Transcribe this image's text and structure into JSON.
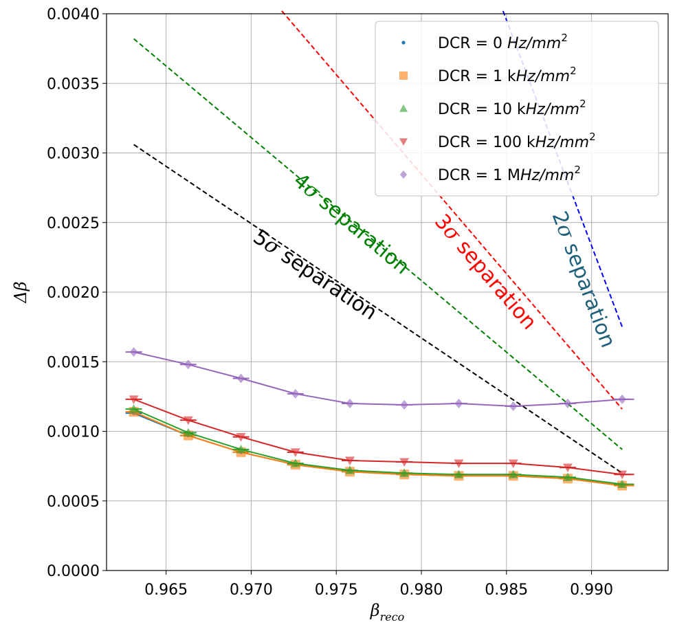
{
  "chart_data": {
    "type": "line",
    "xlabel": "βreco",
    "xlabel_main": "β",
    "xlabel_sub": "reco",
    "ylabel": "Δβ",
    "xlim": [
      0.9615,
      0.9945
    ],
    "ylim": [
      0.0,
      0.004
    ],
    "grid": true,
    "legend_position": "top-right",
    "x_ticks": [
      0.965,
      0.97,
      0.975,
      0.98,
      0.985,
      0.99
    ],
    "x_tick_labels": [
      "0.965",
      "0.970",
      "0.975",
      "0.980",
      "0.985",
      "0.990"
    ],
    "y_ticks": [
      0.0,
      0.0005,
      0.001,
      0.0015,
      0.002,
      0.0025,
      0.003,
      0.0035,
      0.004
    ],
    "y_tick_labels": [
      "0.0000",
      "0.0005",
      "0.0010",
      "0.0015",
      "0.0020",
      "0.0025",
      "0.0030",
      "0.0035",
      "0.0040"
    ],
    "x": [
      0.9631,
      0.9663,
      0.9694,
      0.9726,
      0.9758,
      0.979,
      0.9822,
      0.9854,
      0.9886,
      0.9918
    ],
    "series": [
      {
        "name": "DCR = 0 Hz/mm²",
        "legend_prefix": "DCR = 0 ",
        "legend_unit": "Hz/mm",
        "legend_sup": "2",
        "color": "#1f77b4",
        "marker": "point",
        "values": [
          0.00113,
          0.00097,
          0.00085,
          0.00076,
          0.00071,
          0.00069,
          0.00068,
          0.00068,
          0.00066,
          0.00061
        ]
      },
      {
        "name": "DCR = 1 kHz/mm²",
        "legend_prefix": "DCR = 1 k",
        "legend_unit": "Hz/mm",
        "legend_sup": "2",
        "color": "#ff7f0e",
        "marker": "square",
        "values": [
          0.00114,
          0.00097,
          0.00085,
          0.00076,
          0.00071,
          0.00069,
          0.00068,
          0.00068,
          0.00066,
          0.00061
        ]
      },
      {
        "name": "DCR = 10 kHz/mm²",
        "legend_prefix": "DCR = 10 k",
        "legend_unit": "Hz/mm",
        "legend_sup": "2",
        "color": "#2ca02c",
        "marker": "triangle-up",
        "values": [
          0.00116,
          0.00099,
          0.00087,
          0.00077,
          0.00072,
          0.0007,
          0.00069,
          0.00069,
          0.00067,
          0.00062
        ]
      },
      {
        "name": "DCR = 100 kHz/mm²",
        "legend_prefix": "DCR = 100 k",
        "legend_unit": "Hz/mm",
        "legend_sup": "2",
        "color": "#d62728",
        "marker": "triangle-down",
        "values": [
          0.00123,
          0.00108,
          0.00096,
          0.00085,
          0.00079,
          0.00078,
          0.00077,
          0.00077,
          0.00074,
          0.00069
        ]
      },
      {
        "name": "DCR = 1 MHz/mm²",
        "legend_prefix": "DCR = 1 M",
        "legend_unit": "Hz/mm",
        "legend_sup": "2",
        "color": "#9467bd",
        "marker": "diamond",
        "values": [
          0.00157,
          0.00148,
          0.00138,
          0.00127,
          0.0012,
          0.00119,
          0.0012,
          0.00118,
          0.0012,
          0.00123
        ]
      }
    ],
    "separation_lines": [
      {
        "label": "5σ separation",
        "label_prefix": "5",
        "label_suffix": " separation",
        "color": "#000000",
        "x": [
          0.9631,
          0.9918
        ],
        "y": [
          0.00306,
          0.0007
        ]
      },
      {
        "label": "4σ separation",
        "label_prefix": "4",
        "label_suffix": " separation",
        "color": "#008000",
        "x": [
          0.9631,
          0.9918
        ],
        "y": [
          0.00382,
          0.00087
        ]
      },
      {
        "label": "3σ separation",
        "label_prefix": "3",
        "label_suffix": " separation",
        "color": "#ff0000",
        "x": [
          0.9718,
          0.9918
        ],
        "y": [
          0.00402,
          0.00116
        ]
      },
      {
        "label": "2σ separation",
        "label_prefix": "2",
        "label_suffix": " separation",
        "color": "#0000ff",
        "text_color": "#1f5f7a",
        "x": [
          0.9848,
          0.9918
        ],
        "y": [
          0.00402,
          0.00175
        ]
      }
    ]
  }
}
